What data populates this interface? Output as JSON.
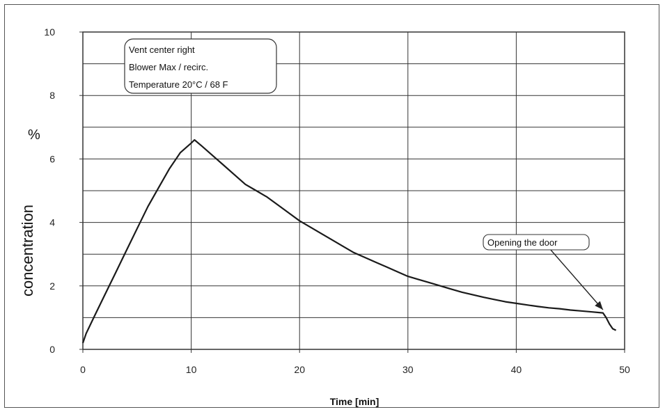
{
  "chart_data": {
    "type": "line",
    "title": "",
    "xlabel": "Time [min]",
    "ylabel": "concentration",
    "yunit": "%",
    "xlim": [
      0,
      50
    ],
    "ylim": [
      0,
      10
    ],
    "x_ticks": [
      "0",
      "10",
      "20",
      "30",
      "40",
      "50"
    ],
    "y_ticks": [
      "0",
      "2",
      "4",
      "6",
      "8",
      "10"
    ],
    "grid": true,
    "legend": "none",
    "line_color": "#1a1a1a",
    "info_box": [
      "Vent center right",
      "Blower Max / recirc.",
      "Temperature 20°C / 68 F"
    ],
    "annotation": {
      "text": "Opening the door",
      "points_to": {
        "x": 48,
        "y": 1.25
      }
    },
    "series": [
      {
        "x": [
          0,
          0.3,
          1,
          2,
          3,
          4,
          5,
          6,
          7,
          8,
          9,
          10,
          10.3,
          11,
          12,
          13,
          14,
          15,
          16,
          17,
          18,
          19,
          20,
          21,
          22,
          23,
          24,
          25,
          26,
          27,
          28,
          29,
          30,
          31,
          32,
          33,
          34,
          35,
          36,
          37,
          38,
          39,
          40,
          41,
          42,
          43,
          44,
          45,
          46,
          47,
          48,
          48.3,
          48.6,
          48.9,
          49.2
        ],
        "values": [
          0.2,
          0.5,
          1.0,
          1.7,
          2.4,
          3.1,
          3.8,
          4.5,
          5.1,
          5.7,
          6.2,
          6.5,
          6.6,
          6.4,
          6.1,
          5.8,
          5.5,
          5.2,
          5.0,
          4.8,
          4.55,
          4.3,
          4.05,
          3.85,
          3.65,
          3.45,
          3.25,
          3.05,
          2.9,
          2.75,
          2.6,
          2.45,
          2.3,
          2.2,
          2.1,
          2.0,
          1.9,
          1.8,
          1.72,
          1.64,
          1.57,
          1.5,
          1.45,
          1.4,
          1.35,
          1.31,
          1.28,
          1.24,
          1.21,
          1.18,
          1.15,
          1.0,
          0.8,
          0.65,
          0.6
        ]
      }
    ]
  }
}
